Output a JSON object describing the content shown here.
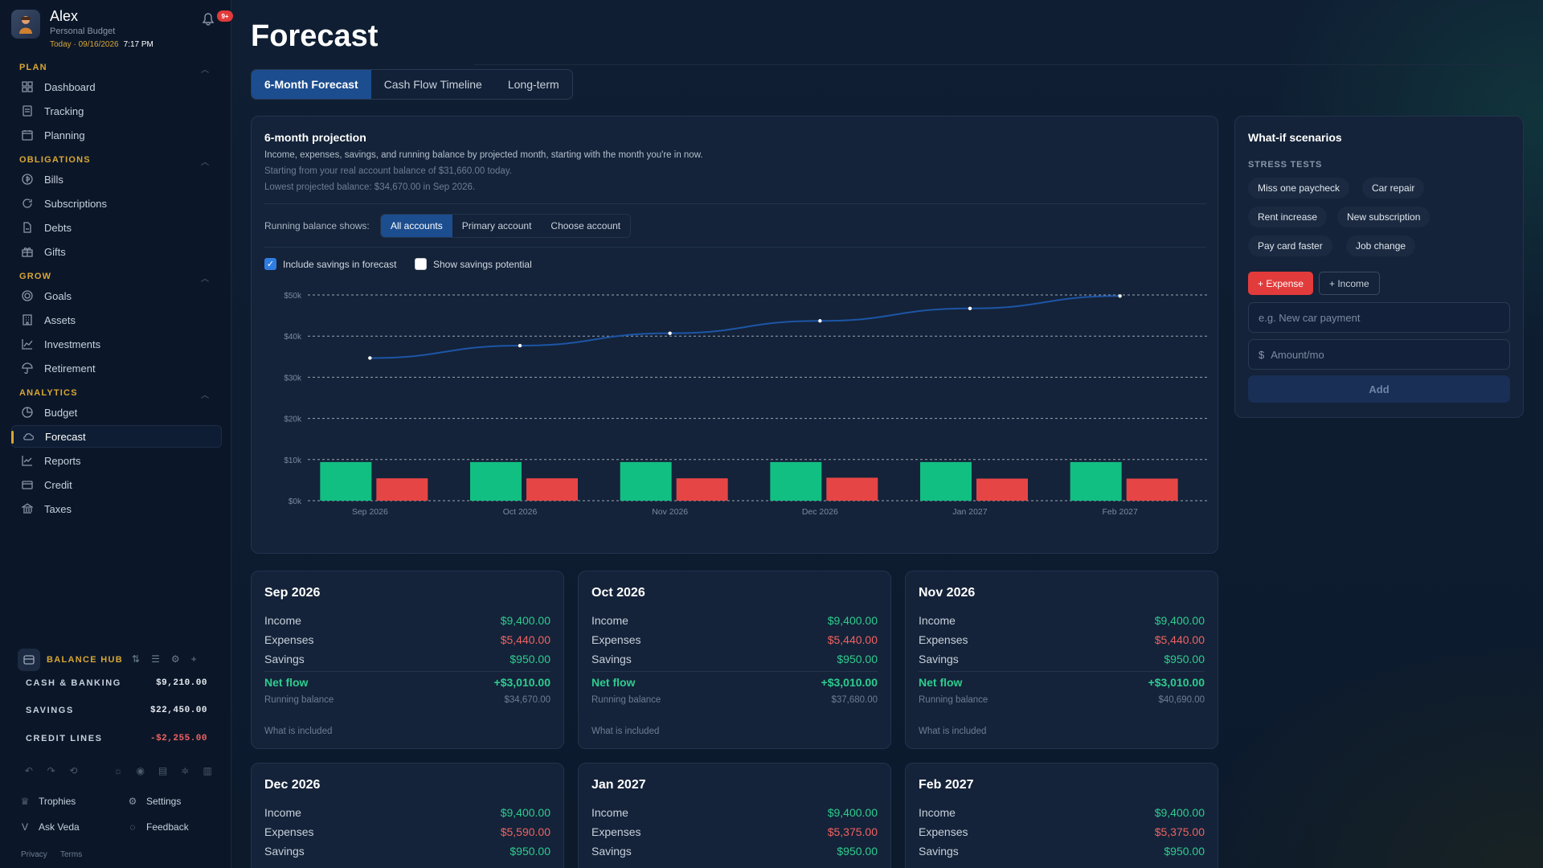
{
  "user": {
    "name": "Alex",
    "subtitle": "Personal Budget",
    "date": "Today · 09/16/2026",
    "time": "7:17 PM",
    "notifications": "9+"
  },
  "nav": {
    "plan_label": "PLAN",
    "plan": [
      "Dashboard",
      "Tracking",
      "Planning"
    ],
    "obligations_label": "OBLIGATIONS",
    "obligations": [
      "Bills",
      "Subscriptions",
      "Debts",
      "Gifts"
    ],
    "grow_label": "GROW",
    "grow": [
      "Goals",
      "Assets",
      "Investments",
      "Retirement"
    ],
    "analytics_label": "ANALYTICS",
    "analytics": [
      "Budget",
      "Forecast",
      "Reports",
      "Credit",
      "Taxes"
    ],
    "active": "Forecast"
  },
  "hub": {
    "title": "BALANCE HUB",
    "accounts": [
      {
        "name": "CASH & BANKING",
        "value": "$9,210.00"
      },
      {
        "name": "SAVINGS",
        "value": "$22,450.00"
      },
      {
        "name": "CREDIT LINES",
        "value": "-$2,255.00"
      }
    ]
  },
  "footer": {
    "trophies": "Trophies",
    "settings": "Settings",
    "ask": "Ask Veda",
    "feedback": "Feedback",
    "privacy": "Privacy",
    "terms": "Terms"
  },
  "page": {
    "title": "Forecast",
    "tabs": [
      "6-Month Forecast",
      "Cash Flow Timeline",
      "Long-term"
    ],
    "active_tab": "6-Month Forecast"
  },
  "projection": {
    "title": "6-month projection",
    "description": "Income, expenses, savings, and running balance by projected month, starting with the month you're in now.",
    "start_note": "Starting from your real account balance of $31,660.00 today.",
    "lowest_note": "Lowest projected balance: $34,670.00 in Sep 2026.",
    "running_label": "Running balance shows:",
    "balance_options": [
      "All accounts",
      "Primary account",
      "Choose account"
    ],
    "include_savings": "Include savings in forecast",
    "show_potential": "Show savings potential"
  },
  "chart_data": {
    "type": "bar",
    "categories": [
      "Sep 2026",
      "Oct 2026",
      "Nov 2026",
      "Dec 2026",
      "Jan 2027",
      "Feb 2027"
    ],
    "y_ticks": [
      "$0k",
      "$10k",
      "$20k",
      "$30k",
      "$40k",
      "$50k"
    ],
    "ylim": [
      0,
      50000
    ],
    "grid": true,
    "series": [
      {
        "values": [
          9400,
          9400,
          9400,
          9400,
          9400,
          9400
        ],
        "color": "#12bf82",
        "type": "bar"
      },
      {
        "values": [
          5440,
          5440,
          5440,
          5590,
          5375,
          5375
        ],
        "color": "#e64545",
        "type": "bar"
      },
      {
        "values": [
          34670,
          37680,
          40690,
          43700,
          46725,
          49750
        ],
        "color": "#1d55a6",
        "type": "line"
      }
    ]
  },
  "whatif": {
    "title": "What-if scenarios",
    "stress_label": "STRESS TESTS",
    "chips": [
      "Miss one paycheck",
      "Car repair",
      "Rent increase",
      "New subscription",
      "Pay card faster",
      "Job change"
    ],
    "expense_btn": "+ Expense",
    "income_btn": "+ Income",
    "name_placeholder": "e.g. New car payment",
    "currency": "$",
    "amount_placeholder": "Amount/mo",
    "add": "Add"
  },
  "labels": {
    "income": "Income",
    "expenses": "Expenses",
    "savings": "Savings",
    "net": "Net flow",
    "running": "Running balance",
    "included": "What is included"
  },
  "months": [
    {
      "name": "Sep 2026",
      "income": "$9,400.00",
      "expenses": "$5,440.00",
      "savings": "$950.00",
      "net": "+$3,010.00",
      "running": "$34,670.00"
    },
    {
      "name": "Oct 2026",
      "income": "$9,400.00",
      "expenses": "$5,440.00",
      "savings": "$950.00",
      "net": "+$3,010.00",
      "running": "$37,680.00"
    },
    {
      "name": "Nov 2026",
      "income": "$9,400.00",
      "expenses": "$5,440.00",
      "savings": "$950.00",
      "net": "+$3,010.00",
      "running": "$40,690.00"
    },
    {
      "name": "Dec 2026",
      "income": "$9,400.00",
      "expenses": "$5,590.00",
      "savings": "$950.00"
    },
    {
      "name": "Jan 2027",
      "income": "$9,400.00",
      "expenses": "$5,375.00",
      "savings": "$950.00"
    },
    {
      "name": "Feb 2027",
      "income": "$9,400.00",
      "expenses": "$5,375.00",
      "savings": "$950.00"
    }
  ]
}
